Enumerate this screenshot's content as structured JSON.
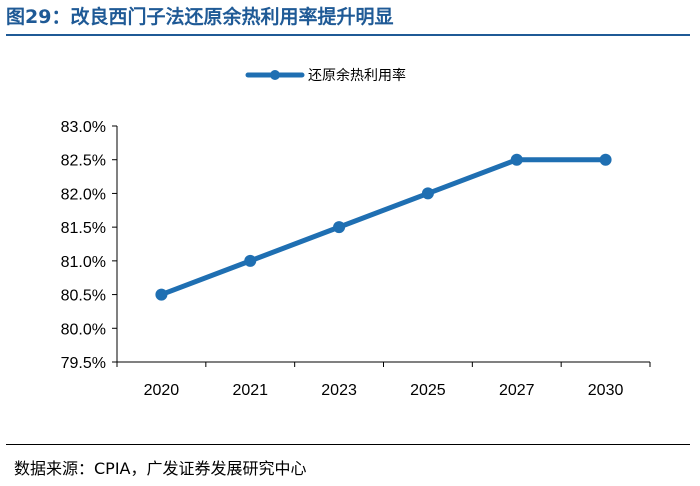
{
  "figure_title": "图29：改良西门子法还原余热利用率提升明显",
  "source_note": "数据来源：CPIA，广发证券发展研究中心",
  "colors": {
    "series": "#1f6fb2",
    "title": "#1f5a96",
    "axis": "#000000"
  },
  "chart_data": {
    "type": "line",
    "categories": [
      "2020",
      "2021",
      "2023",
      "2025",
      "2027",
      "2030"
    ],
    "series": [
      {
        "name": "还原余热利用率",
        "values": [
          80.5,
          81.0,
          81.5,
          82.0,
          82.5,
          82.5
        ]
      }
    ],
    "ylim": [
      79.5,
      83.0
    ],
    "yticks": [
      79.5,
      80.0,
      80.5,
      81.0,
      81.5,
      82.0,
      82.5,
      83.0
    ],
    "ytick_labels": [
      "79.5%",
      "80.0%",
      "80.5%",
      "81.0%",
      "81.5%",
      "82.0%",
      "82.5%",
      "83.0%"
    ],
    "grid": false,
    "legend_position": "top-center",
    "marker": "circle"
  }
}
